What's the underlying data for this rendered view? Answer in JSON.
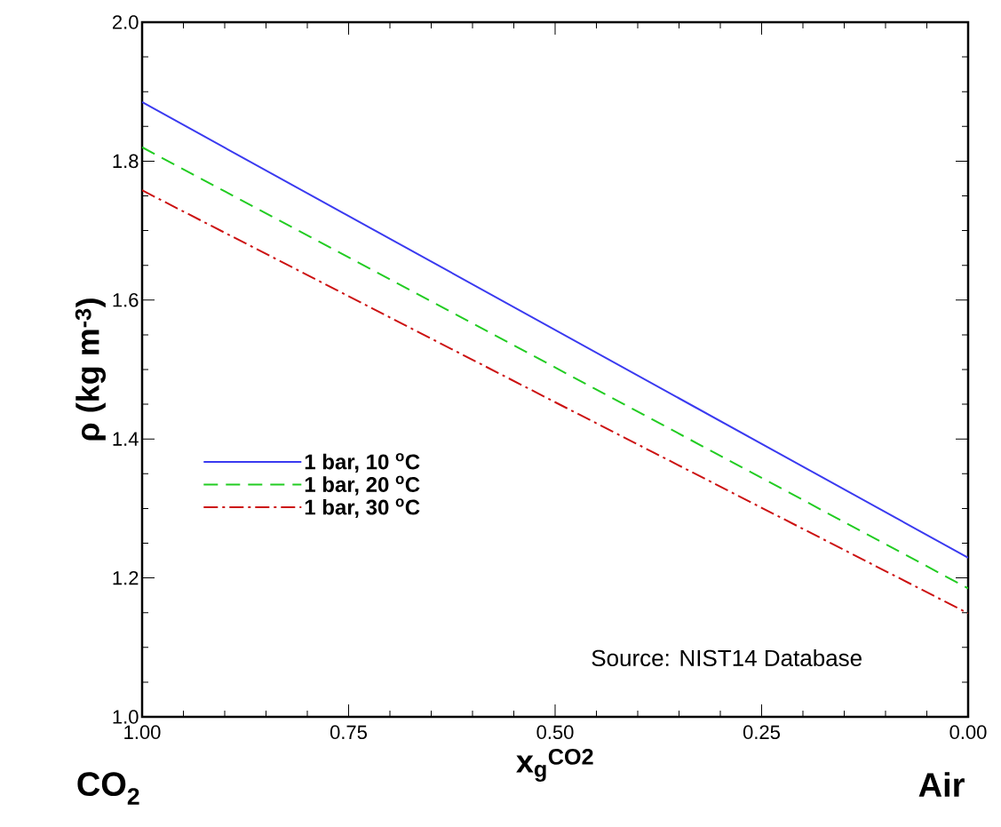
{
  "chart_data": {
    "type": "line",
    "xlabel": "x$_{g}$$^{CO2}$",
    "ylabel": "ρ (kg m$^{-3}$)",
    "x": [
      1.0,
      0.5,
      0.0
    ],
    "series": [
      {
        "name": "1 bar, 10 $^{o}$C",
        "color": "#3a3af0",
        "values": [
          1.885,
          1.557,
          1.229
        ],
        "line_style": "solid"
      },
      {
        "name": "1 bar, 20 $^{o}$C",
        "color": "#22cc22",
        "values": [
          1.82,
          1.503,
          1.185
        ],
        "line_style": "dashed"
      },
      {
        "name": "1 bar, 30 $^{o}$C",
        "color": "#cc1111",
        "values": [
          1.758,
          1.453,
          1.149
        ],
        "line_style": "dashdot"
      }
    ],
    "xlim": [
      1.0,
      0.0
    ],
    "ylim": [
      1.0,
      2.0
    ],
    "xticks": [
      {
        "value": 1.0,
        "label": "1.00"
      },
      {
        "value": 0.75,
        "label": "0.75"
      },
      {
        "value": 0.5,
        "label": "0.50"
      },
      {
        "value": 0.25,
        "label": "0.25"
      },
      {
        "value": 0.0,
        "label": "0.00"
      }
    ],
    "yticks": [
      {
        "value": 1.0,
        "label": "1.0"
      },
      {
        "value": 1.2,
        "label": "1.2"
      },
      {
        "value": 1.4,
        "label": "1.4"
      },
      {
        "value": 1.6,
        "label": "1.6"
      },
      {
        "value": 1.8,
        "label": "1.8"
      },
      {
        "value": 2.0,
        "label": "2.0"
      }
    ],
    "legend": "left",
    "grid": false,
    "annotations": [
      "CO$_{2}$",
      "Air",
      "Source:  NIST14 Database"
    ]
  }
}
